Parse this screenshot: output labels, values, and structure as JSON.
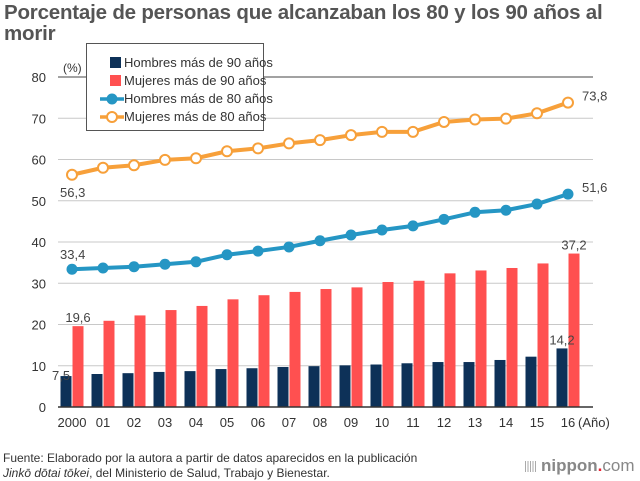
{
  "title": "Porcentaje de personas que alcanzaban los 80 y los 90 años al morir",
  "chart_data": {
    "type": "bar+line",
    "title": "Porcentaje de personas que alcanzaban los 80 y los 90 años al morir",
    "ylabel": "(%)",
    "xlabel": "(Año)",
    "ylim": [
      0,
      80
    ],
    "yticks": [
      "0",
      "10",
      "20",
      "30",
      "40",
      "50",
      "60",
      "70",
      "80"
    ],
    "grid": true,
    "legend_position": "top-left",
    "categories": [
      "2000",
      "01",
      "02",
      "03",
      "04",
      "05",
      "06",
      "07",
      "08",
      "09",
      "10",
      "11",
      "12",
      "13",
      "14",
      "15",
      "16"
    ],
    "series": [
      {
        "name": "Hombres más de 90 años",
        "kind": "bar",
        "color": "#0d3158",
        "values": [
          7.5,
          8.0,
          8.2,
          8.5,
          8.7,
          9.2,
          9.4,
          9.7,
          9.9,
          10.1,
          10.3,
          10.6,
          10.9,
          10.9,
          11.4,
          12.2,
          14.2
        ]
      },
      {
        "name": "Mujeres más de 90 años",
        "kind": "bar",
        "color": "#ff5050",
        "values": [
          19.6,
          20.9,
          22.2,
          23.5,
          24.5,
          26.1,
          27.1,
          27.9,
          28.6,
          29.0,
          30.3,
          30.6,
          32.4,
          33.1,
          33.7,
          34.8,
          37.2
        ]
      },
      {
        "name": "Hombres más de 80 años",
        "kind": "line",
        "color": "#2596c4",
        "marker": "filled-circle",
        "values": [
          33.4,
          33.7,
          34.0,
          34.6,
          35.2,
          36.9,
          37.8,
          38.8,
          40.3,
          41.7,
          42.9,
          43.9,
          45.5,
          47.2,
          47.7,
          49.2,
          51.6
        ]
      },
      {
        "name": "Mujeres más de 80 años",
        "kind": "line",
        "color": "#f7a03a",
        "marker": "open-circle",
        "values": [
          56.3,
          58.0,
          58.6,
          59.9,
          60.3,
          62.0,
          62.7,
          63.9,
          64.7,
          65.9,
          66.7,
          66.7,
          69.1,
          69.7,
          69.9,
          71.2,
          73.8
        ]
      }
    ],
    "annotations": [
      {
        "series": 0,
        "index": 0,
        "text": "7,5"
      },
      {
        "series": 0,
        "index": 16,
        "text": "14,2"
      },
      {
        "series": 1,
        "index": 0,
        "text": "19,6"
      },
      {
        "series": 1,
        "index": 16,
        "text": "37,2"
      },
      {
        "series": 2,
        "index": 0,
        "text": "33,4"
      },
      {
        "series": 2,
        "index": 16,
        "text": "51,6"
      },
      {
        "series": 3,
        "index": 0,
        "text": "56,3"
      },
      {
        "series": 3,
        "index": 16,
        "text": "73,8"
      }
    ]
  },
  "footer": {
    "line1": "Fuente: Elaborado por la autora a partir de datos aparecidos en la publicación",
    "line2_italic": "Jinkō dōtai tōkei",
    "line2_rest": ", del Ministerio de Salud, Trabajo y Bienestar."
  },
  "logo": {
    "name": "nippon",
    "dot": ".",
    "tld": "com"
  }
}
